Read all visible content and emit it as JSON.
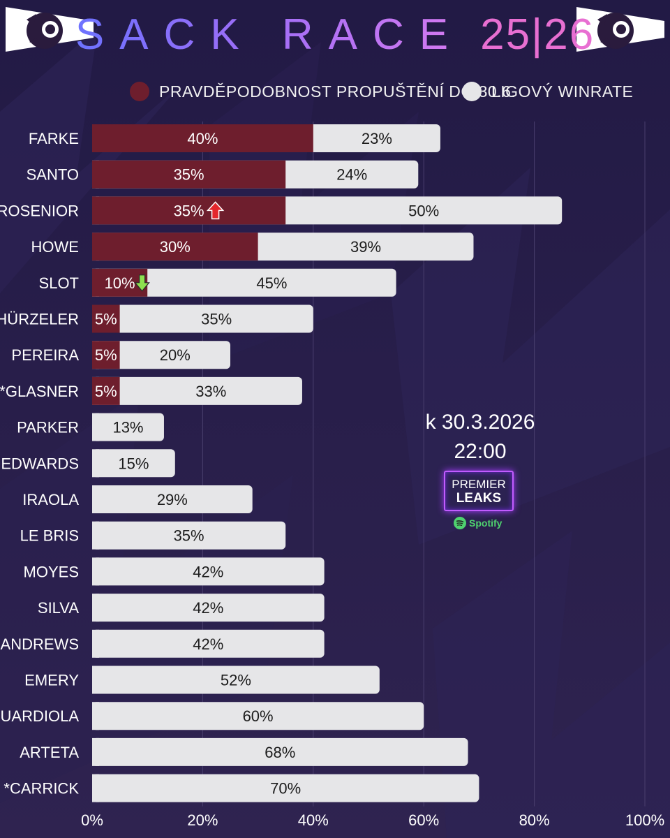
{
  "title": {
    "main": "SACK RACE",
    "season": "25|26"
  },
  "legend": {
    "sack": {
      "label": "PRAVDĚPODOBNOST PROPUŠTĚNÍ DO 30.6.",
      "color": "#6e1e2d"
    },
    "win": {
      "label": "LIGOVÝ WINRATE",
      "color": "#e6e6e8"
    }
  },
  "stamp": {
    "date": "k 30.3.2026",
    "time": "22:00"
  },
  "podcast": {
    "line1": "PREMIER",
    "line2": "LEAKS",
    "platform": "Spotify"
  },
  "icons": {
    "up": "red-up-arrow-icon",
    "down": "green-down-arrow-icon",
    "logo": "premier-league-lion-icon",
    "spotify": "spotify-icon"
  },
  "chart_data": {
    "type": "bar",
    "orientation": "horizontal",
    "stacked": true,
    "xlim": [
      0,
      100
    ],
    "x_ticks": [
      "0%",
      "20%",
      "40%",
      "60%",
      "80%",
      "100%"
    ],
    "categories": [
      "FARKE",
      "SANTO",
      "ROSENIOR",
      "HOWE",
      "SLOT",
      "HÜRZELER",
      "PEREIRA",
      "*GLASNER",
      "PARKER",
      "EDWARDS",
      "IRAOLA",
      "LE BRIS",
      "MOYES",
      "SILVA",
      "ANDREWS",
      "EMERY",
      "GUARDIOLA",
      "ARTETA",
      "*CARRICK"
    ],
    "series": [
      {
        "name": "PRAVDĚPODOBNOST PROPUŠTĚNÍ DO 30.6.",
        "values": [
          40,
          35,
          35,
          30,
          10,
          5,
          5,
          5,
          0,
          0,
          0,
          0,
          0,
          0,
          0,
          0,
          0,
          0,
          0
        ],
        "labels": [
          "40%",
          "35%",
          "35%",
          "30%",
          "10%",
          "5%",
          "5%",
          "5%",
          "",
          "",
          "",
          "",
          "",
          "",
          "",
          "",
          "",
          "",
          ""
        ]
      },
      {
        "name": "LIGOVÝ WINRATE",
        "values": [
          23,
          24,
          50,
          39,
          45,
          35,
          20,
          33,
          13,
          15,
          29,
          35,
          42,
          42,
          42,
          52,
          60,
          68,
          70
        ],
        "labels": [
          "23%",
          "24%",
          "50%",
          "39%",
          "45%",
          "35%",
          "20%",
          "33%",
          "13%",
          "15%",
          "29%",
          "35%",
          "42%",
          "42%",
          "42%",
          "52%",
          "60%",
          "68%",
          "70%"
        ]
      }
    ],
    "trend_markers": {
      "ROSENIOR": "up",
      "SLOT": "down"
    }
  }
}
